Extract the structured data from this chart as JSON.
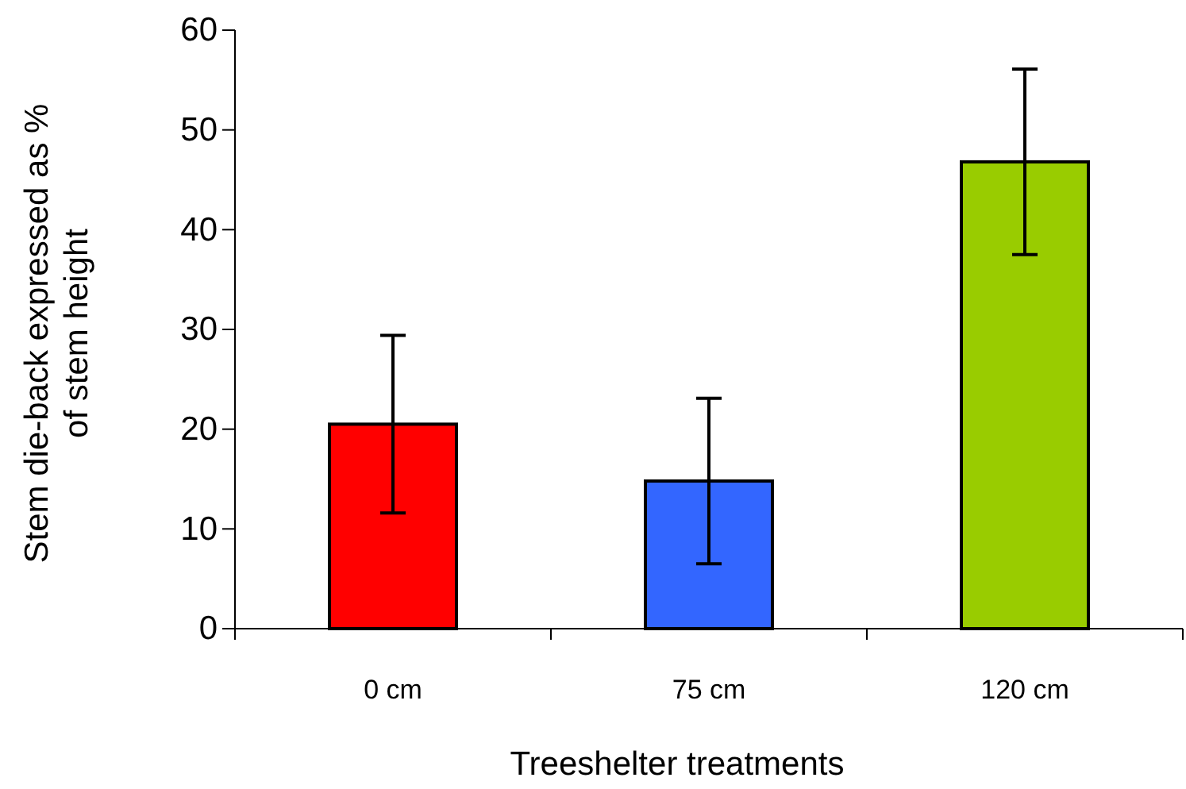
{
  "chart_data": {
    "type": "bar",
    "xlabel": "Treeshelter treatments",
    "ylabel": "Stem die-back expressed as % of stem height",
    "categories": [
      "0 cm",
      "75 cm",
      "120 cm"
    ],
    "values": [
      20.5,
      14.8,
      46.8
    ],
    "colors": [
      "#ff0000",
      "#3366ff",
      "#99cc00"
    ],
    "errors": [
      8.9,
      8.3,
      9.3
    ],
    "ylim": [
      0,
      60
    ],
    "yticks": [
      0,
      10,
      20,
      30,
      40,
      50,
      60
    ],
    "grid": false
  }
}
